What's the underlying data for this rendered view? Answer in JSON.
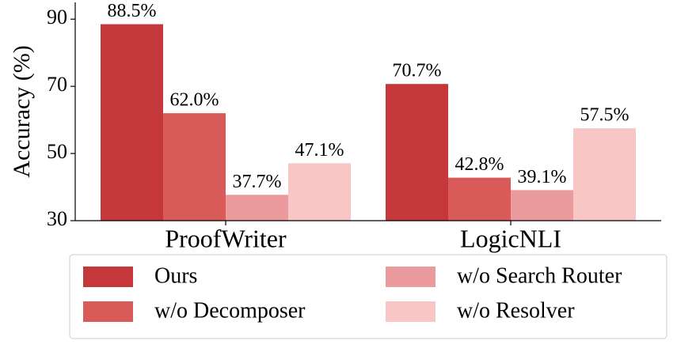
{
  "chart_data": {
    "type": "bar",
    "y_label": "Accuracy (%)",
    "categories": [
      "ProofWriter",
      "LogicNLI"
    ],
    "series": [
      {
        "name": "Ours",
        "color": "#c4373b",
        "values": [
          88.5,
          70.7
        ],
        "value_labels": [
          "88.5%",
          "70.7%"
        ]
      },
      {
        "name": "w/o Decomposer",
        "color": "#d95b59",
        "values": [
          62.0,
          42.8
        ],
        "value_labels": [
          "62.0%",
          "42.8%"
        ]
      },
      {
        "name": "w/o Search Router",
        "color": "#eb9b9d",
        "values": [
          37.7,
          39.1
        ],
        "value_labels": [
          "37.7%",
          "39.1%"
        ]
      },
      {
        "name": "w/o Resolver",
        "color": "#f7c6c5",
        "values": [
          47.1,
          57.5
        ],
        "value_labels": [
          "47.1%",
          "57.5%"
        ]
      }
    ],
    "ylim": [
      30,
      95
    ],
    "yticks": [
      30,
      50,
      70,
      90
    ],
    "legend": "bottom"
  }
}
